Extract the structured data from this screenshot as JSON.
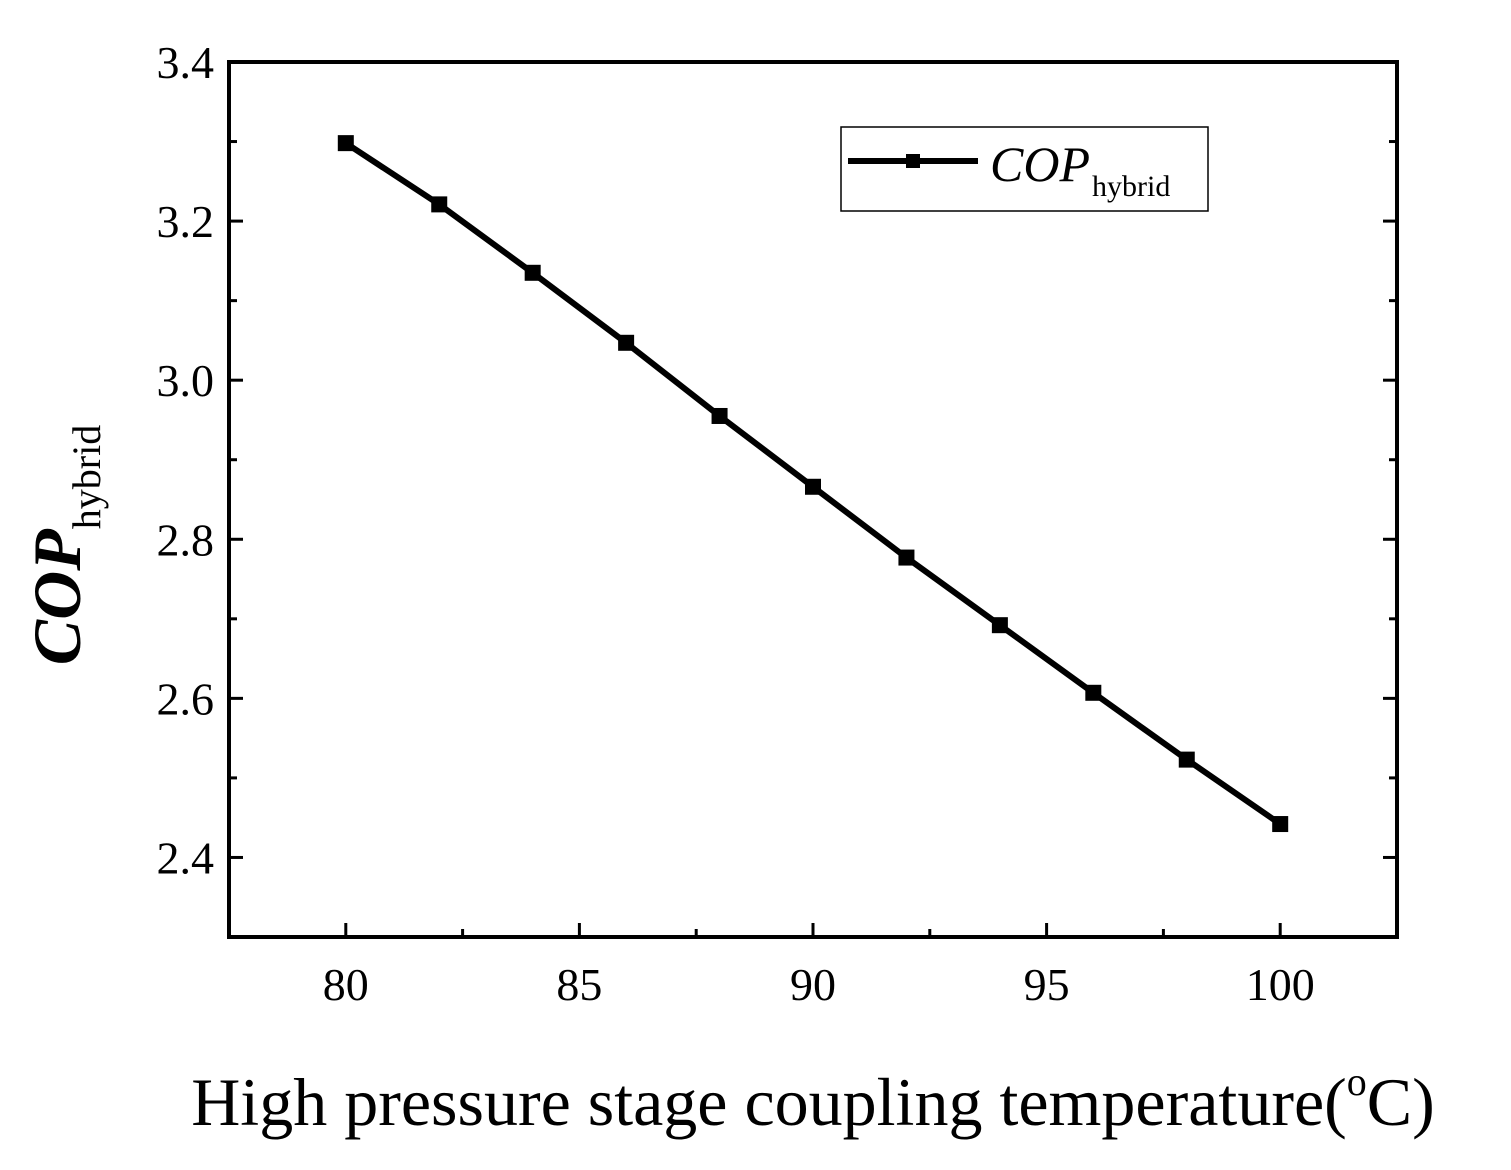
{
  "chart_data": {
    "type": "line",
    "x": [
      80,
      82,
      84,
      86,
      88,
      90,
      92,
      94,
      96,
      98,
      100
    ],
    "series": [
      {
        "name": "COP_hybrid",
        "legend_main": "COP",
        "legend_sub": "hybrid",
        "values": [
          3.298,
          3.221,
          3.135,
          3.047,
          2.955,
          2.866,
          2.777,
          2.692,
          2.607,
          2.523,
          2.442
        ],
        "color": "#000000",
        "marker": "square"
      }
    ],
    "xlabel": {
      "main": "High pressure stage coupling temperature(",
      "sup": "o",
      "unit": "C)"
    },
    "ylabel": {
      "main": "COP",
      "sub": "hybrid"
    },
    "xlim": [
      77.5,
      102.5
    ],
    "ylim": [
      2.3,
      3.4
    ],
    "x_ticks": [
      "80",
      "85",
      "90",
      "95",
      "100"
    ],
    "x_tick_values": [
      80,
      85,
      90,
      95,
      100
    ],
    "y_ticks": [
      "2.4",
      "2.6",
      "2.8",
      "3.0",
      "3.2",
      "3.4"
    ],
    "y_tick_values": [
      2.4,
      2.6,
      2.8,
      3.0,
      3.2,
      3.4
    ],
    "legend_position": "top-right",
    "grid": false
  }
}
